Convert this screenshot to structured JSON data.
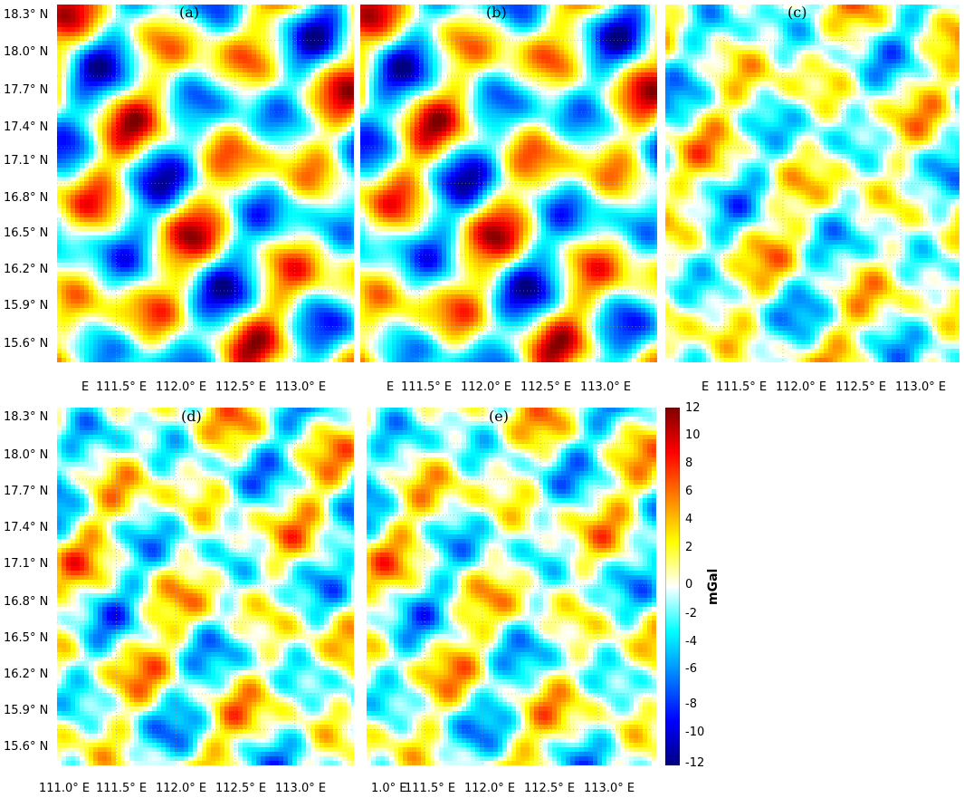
{
  "chart_data": [
    {
      "type": "heatmap",
      "panel_label": "(a)",
      "y_ticks": [
        "18.3° N",
        "18.0° N",
        "17.7° N",
        "17.4° N",
        "17.1° N",
        "16.8° N",
        "16.5° N",
        "16.2° N",
        "15.9° N",
        "15.6° N"
      ],
      "x_ticks": [
        "E",
        "111.5° E",
        "112.0° E",
        "112.5° E",
        "113.0° E"
      ],
      "value_range": [
        -12,
        12
      ],
      "units": "mGal"
    },
    {
      "type": "heatmap",
      "panel_label": "(b)",
      "y_ticks": [],
      "x_ticks": [
        "E",
        "111.5° E",
        "112.0° E",
        "112.5° E",
        "113.0° E"
      ],
      "value_range": [
        -12,
        12
      ],
      "units": "mGal"
    },
    {
      "type": "heatmap",
      "panel_label": "(c)",
      "y_ticks": [],
      "x_ticks": [
        "E",
        "111.5° E",
        "112.0° E",
        "112.5° E",
        "113.0° E"
      ],
      "value_range": [
        -12,
        12
      ],
      "units": "mGal"
    },
    {
      "type": "heatmap",
      "panel_label": "(d)",
      "y_ticks": [
        "18.3° N",
        "18.0° N",
        "17.7° N",
        "17.4° N",
        "17.1° N",
        "16.8° N",
        "16.5° N",
        "16.2° N",
        "15.9° N",
        "15.6° N"
      ],
      "x_ticks": [
        "111.0° E",
        "111.5° E",
        "112.0° E",
        "112.5° E",
        "113.0° E"
      ],
      "value_range": [
        -12,
        12
      ],
      "units": "mGal"
    },
    {
      "type": "heatmap",
      "panel_label": "(e)",
      "y_ticks": [],
      "x_ticks": [
        "1.0° E",
        "111.5° E",
        "112.0° E",
        "112.5° E",
        "113.0° E"
      ],
      "value_range": [
        -12,
        12
      ],
      "units": "mGal"
    }
  ],
  "colorbar": {
    "ticks": [
      "12",
      "10",
      "8",
      "6",
      "4",
      "2",
      "0",
      "-2",
      "-4",
      "-6",
      "-8",
      "-10",
      "-12"
    ],
    "label": "mGal",
    "colors": [
      "#000080",
      "#0000ff",
      "#0080ff",
      "#00ffff",
      "#ffffff",
      "#ffff00",
      "#ff8000",
      "#ff0000",
      "#800000"
    ]
  }
}
